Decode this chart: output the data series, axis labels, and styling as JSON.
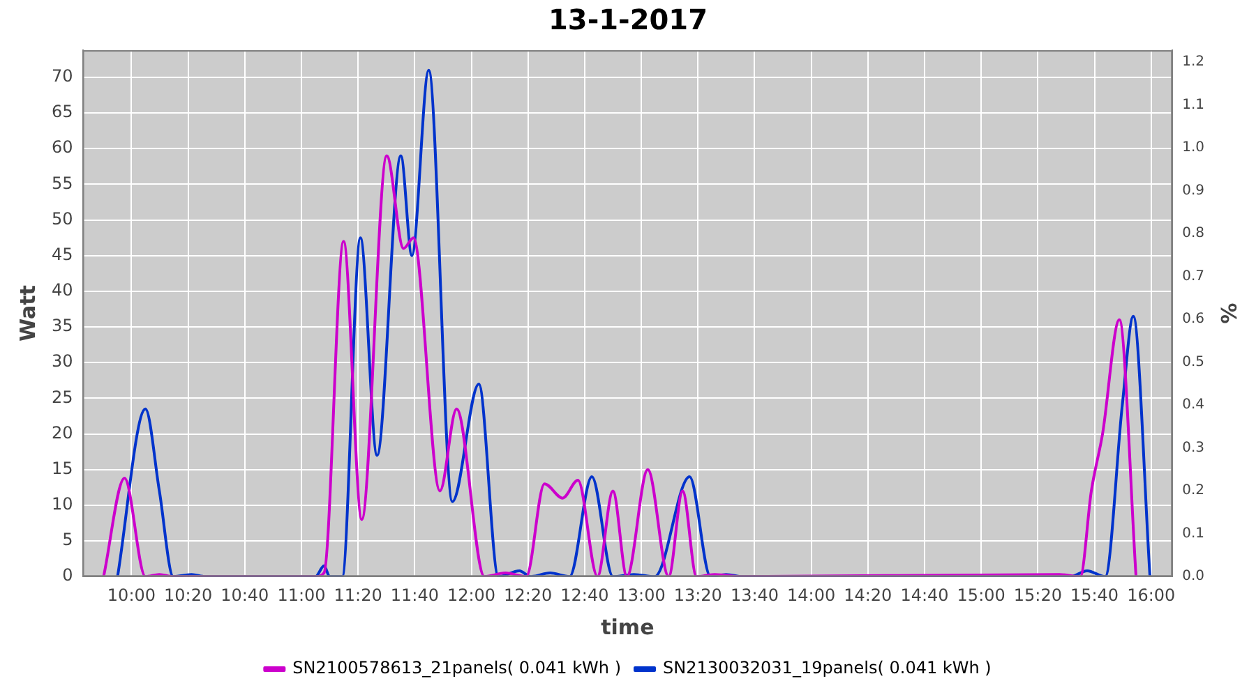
{
  "chart_data": {
    "type": "line",
    "title": "13-1-2017",
    "xlabel": "time",
    "ylabel": "Watt",
    "y2label": "%",
    "xlim": [
      9.713,
      16.125
    ],
    "xticks": [
      {
        "value": 10,
        "label": "10:00"
      },
      {
        "value": 10.3333,
        "label": "10:20"
      },
      {
        "value": 10.6667,
        "label": "10:40"
      },
      {
        "value": 11,
        "label": "11:00"
      },
      {
        "value": 11.3333,
        "label": "11:20"
      },
      {
        "value": 11.6667,
        "label": "11:40"
      },
      {
        "value": 12,
        "label": "12:00"
      },
      {
        "value": 12.3333,
        "label": "12:20"
      },
      {
        "value": 12.6667,
        "label": "12:40"
      },
      {
        "value": 13,
        "label": "13:00"
      },
      {
        "value": 13.3333,
        "label": "13:20"
      },
      {
        "value": 13.6667,
        "label": "13:40"
      },
      {
        "value": 14,
        "label": "14:00"
      },
      {
        "value": 14.3333,
        "label": "14:20"
      },
      {
        "value": 14.6667,
        "label": "14:40"
      },
      {
        "value": 15,
        "label": "15:00"
      },
      {
        "value": 15.3333,
        "label": "15:20"
      },
      {
        "value": 15.6667,
        "label": "15:40"
      },
      {
        "value": 16,
        "label": "16:00"
      }
    ],
    "ylim": [
      0,
      73.8
    ],
    "yticks": [
      0,
      5,
      10,
      15,
      20,
      25,
      30,
      35,
      40,
      45,
      50,
      55,
      60,
      65,
      70
    ],
    "y2lim": [
      0,
      1.228
    ],
    "y2ticks": [
      {
        "value": 0,
        "label": "0.0"
      },
      {
        "value": 0.1,
        "label": "0.1"
      },
      {
        "value": 0.2,
        "label": "0.2"
      },
      {
        "value": 0.3,
        "label": "0.3"
      },
      {
        "value": 0.4,
        "label": "0.4"
      },
      {
        "value": 0.5,
        "label": "0.5"
      },
      {
        "value": 0.6,
        "label": "0.6"
      },
      {
        "value": 0.7,
        "label": "0.7"
      },
      {
        "value": 0.8,
        "label": "0.8"
      },
      {
        "value": 0.9,
        "label": "0.9"
      },
      {
        "value": 1.0,
        "label": "1.0"
      },
      {
        "value": 1.1,
        "label": "1.1"
      },
      {
        "value": 1.2,
        "label": "1.2"
      }
    ],
    "grid": true,
    "legend": "bottom",
    "series": [
      {
        "name": "SN2100578613_21panels( 0.041 kWh )",
        "color": "#cc00cc",
        "x": [
          9.836,
          9.959,
          10.082,
          10.164,
          10.246,
          11.083,
          11.133,
          11.248,
          11.355,
          11.502,
          11.601,
          11.659,
          11.815,
          11.913,
          12.077,
          12.2,
          12.323,
          12.43,
          12.537,
          12.627,
          12.742,
          12.833,
          12.915,
          13.038,
          13.161,
          13.243,
          13.325,
          13.432,
          13.596,
          15.46,
          15.583,
          15.648,
          15.714,
          15.813,
          15.911
        ],
        "values": [
          0,
          13.8,
          0,
          0.3,
          0,
          0,
          0.5,
          47,
          8,
          59,
          46,
          47.5,
          12,
          23.5,
          0,
          0.5,
          0,
          13,
          11,
          13.5,
          0,
          12,
          0,
          15,
          0,
          12,
          0,
          0.3,
          0,
          0.3,
          0,
          12,
          20,
          36,
          0
        ]
      },
      {
        "name": "SN2130032031_19panels( 0.041 kWh )",
        "color": "#0033cc",
        "x": [
          9.918,
          10.082,
          10.164,
          10.246,
          10.353,
          10.435,
          11.083,
          11.133,
          11.166,
          11.24,
          11.347,
          11.445,
          11.585,
          11.65,
          11.749,
          11.888,
          12.044,
          12.159,
          12.283,
          12.348,
          12.463,
          12.578,
          12.709,
          12.833,
          12.956,
          13.079,
          13.284,
          13.407,
          13.498,
          13.596,
          15.525,
          15.623,
          15.73,
          15.83,
          15.895,
          15.993
        ],
        "values": [
          0,
          23.5,
          12,
          0,
          0.3,
          0,
          0,
          1.5,
          0,
          0,
          47.5,
          17,
          59,
          45,
          71,
          10.5,
          27,
          0,
          0.8,
          0,
          0.5,
          0,
          14,
          0,
          0.3,
          0,
          14,
          0,
          0.3,
          0,
          0,
          0.8,
          0,
          24,
          36.5,
          0
        ]
      }
    ]
  }
}
